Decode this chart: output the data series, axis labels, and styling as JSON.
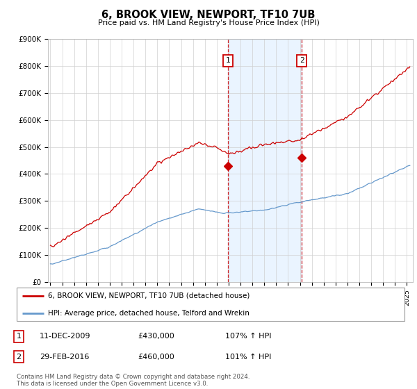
{
  "title": "6, BROOK VIEW, NEWPORT, TF10 7UB",
  "subtitle": "Price paid vs. HM Land Registry's House Price Index (HPI)",
  "legend_line1": "6, BROOK VIEW, NEWPORT, TF10 7UB (detached house)",
  "legend_line2": "HPI: Average price, detached house, Telford and Wrekin",
  "table_rows": [
    {
      "num": "1",
      "date": "11-DEC-2009",
      "price": "£430,000",
      "hpi": "107% ↑ HPI"
    },
    {
      "num": "2",
      "date": "29-FEB-2016",
      "price": "£460,000",
      "hpi": "101% ↑ HPI"
    }
  ],
  "footnote": "Contains HM Land Registry data © Crown copyright and database right 2024.\nThis data is licensed under the Open Government Licence v3.0.",
  "sale1_x": 2009.94,
  "sale1_y": 430000,
  "sale2_x": 2016.16,
  "sale2_y": 460000,
  "hpi_color": "#6699cc",
  "sale_color": "#cc0000",
  "shade_color": "#ddeeff",
  "dashed_color": "#cc0000",
  "ylim": [
    0,
    900000
  ],
  "xlim_start": 1994.8,
  "xlim_end": 2025.5,
  "yticks": [
    0,
    100000,
    200000,
    300000,
    400000,
    500000,
    600000,
    700000,
    800000,
    900000
  ],
  "ytick_labels": [
    "£0",
    "£100K",
    "£200K",
    "£300K",
    "£400K",
    "£500K",
    "£600K",
    "£700K",
    "£800K",
    "£900K"
  ],
  "bg_color": "#f8f8f8"
}
